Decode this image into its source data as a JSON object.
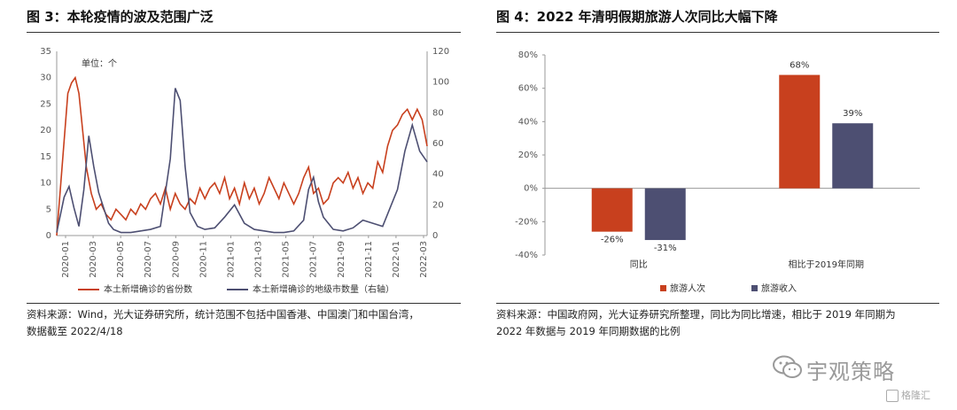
{
  "left": {
    "title": "图 3：本轮疫情的波及范围广泛",
    "source": "资料来源：Wind，光大证券研究所，统计范围不包括中国香港、中国澳门和中国台湾，",
    "source2": "数据截至 2022/4/18"
  },
  "right": {
    "title": "图 4：2022 年清明假期旅游人次同比大幅下降",
    "source": "资料来源：中国政府网，光大证券研究所整理，同比为同比增速，相比于 2019 年同期为",
    "source2": "2022 年数据与 2019 年同期数据的比例"
  },
  "watermark": {
    "text": "宇观策略",
    "small": "格隆汇"
  },
  "colors": {
    "orange": "#c8401e",
    "purple": "#4d4f72"
  },
  "chart_data": [
    {
      "type": "line",
      "unit_note": "单位：个",
      "x_tick_labels": [
        "2020-01",
        "2020-03",
        "2020-05",
        "2020-07",
        "2020-09",
        "2020-11",
        "2021-01",
        "2021-03",
        "2021-05",
        "2021-07",
        "2021-09",
        "2021-11",
        "2022-01",
        "2022-03"
      ],
      "y_left_ticks": [
        "0",
        "5",
        "10",
        "15",
        "20",
        "25",
        "30",
        "35"
      ],
      "y_right_ticks": [
        "0",
        "20",
        "40",
        "60",
        "80",
        "100",
        "120"
      ],
      "ylim_left": [
        0,
        35
      ],
      "ylim_right": [
        0,
        120
      ],
      "series": [
        {
          "name": "本土新增确诊的省份数",
          "axis": "left",
          "color": "#c8401e",
          "points": [
            [
              0,
              0
            ],
            [
              0.3,
              18
            ],
            [
              0.45,
              27
            ],
            [
              0.6,
              29
            ],
            [
              0.75,
              30
            ],
            [
              0.9,
              27
            ],
            [
              1.05,
              20
            ],
            [
              1.2,
              13
            ],
            [
              1.4,
              8
            ],
            [
              1.6,
              5
            ],
            [
              1.8,
              6
            ],
            [
              2.0,
              4
            ],
            [
              2.2,
              3
            ],
            [
              2.4,
              5
            ],
            [
              2.6,
              4
            ],
            [
              2.8,
              3
            ],
            [
              3.0,
              5
            ],
            [
              3.2,
              4
            ],
            [
              3.4,
              6
            ],
            [
              3.6,
              5
            ],
            [
              3.8,
              7
            ],
            [
              4.0,
              8
            ],
            [
              4.2,
              6
            ],
            [
              4.4,
              9
            ],
            [
              4.6,
              5
            ],
            [
              4.8,
              8
            ],
            [
              5.0,
              6
            ],
            [
              5.2,
              5
            ],
            [
              5.4,
              7
            ],
            [
              5.6,
              6
            ],
            [
              5.8,
              9
            ],
            [
              6.0,
              7
            ],
            [
              6.2,
              9
            ],
            [
              6.4,
              10
            ],
            [
              6.6,
              8
            ],
            [
              6.8,
              11
            ],
            [
              7.0,
              7
            ],
            [
              7.2,
              9
            ],
            [
              7.4,
              6
            ],
            [
              7.6,
              10
            ],
            [
              7.8,
              7
            ],
            [
              8.0,
              9
            ],
            [
              8.2,
              6
            ],
            [
              8.4,
              8
            ],
            [
              8.6,
              11
            ],
            [
              8.8,
              9
            ],
            [
              9.0,
              7
            ],
            [
              9.2,
              10
            ],
            [
              9.4,
              8
            ],
            [
              9.6,
              6
            ],
            [
              9.8,
              8
            ],
            [
              10.0,
              11
            ],
            [
              10.2,
              13
            ],
            [
              10.4,
              8
            ],
            [
              10.6,
              9
            ],
            [
              10.8,
              6
            ],
            [
              11.0,
              7
            ],
            [
              11.2,
              10
            ],
            [
              11.4,
              11
            ],
            [
              11.6,
              10
            ],
            [
              11.8,
              12
            ],
            [
              12.0,
              9
            ],
            [
              12.2,
              11
            ],
            [
              12.4,
              8
            ],
            [
              12.6,
              10
            ],
            [
              12.8,
              9
            ],
            [
              13.0,
              14
            ],
            [
              13.2,
              12
            ],
            [
              13.4,
              17
            ],
            [
              13.6,
              20
            ],
            [
              13.8,
              21
            ],
            [
              14.0,
              23
            ],
            [
              14.2,
              24
            ],
            [
              14.4,
              22
            ],
            [
              14.6,
              24
            ],
            [
              14.8,
              22
            ],
            [
              15.0,
              17
            ]
          ]
        },
        {
          "name": "本土新增确诊的地级市数量（右轴）",
          "axis": "right",
          "color": "#4d4f72",
          "points": [
            [
              0,
              2
            ],
            [
              0.3,
              25
            ],
            [
              0.5,
              32
            ],
            [
              0.7,
              18
            ],
            [
              0.9,
              6
            ],
            [
              1.1,
              30
            ],
            [
              1.3,
              65
            ],
            [
              1.5,
              45
            ],
            [
              1.7,
              28
            ],
            [
              1.9,
              18
            ],
            [
              2.1,
              8
            ],
            [
              2.3,
              4
            ],
            [
              2.6,
              2
            ],
            [
              3.0,
              2
            ],
            [
              3.4,
              3
            ],
            [
              3.8,
              4
            ],
            [
              4.2,
              6
            ],
            [
              4.6,
              50
            ],
            [
              4.8,
              96
            ],
            [
              5.0,
              88
            ],
            [
              5.2,
              45
            ],
            [
              5.4,
              15
            ],
            [
              5.7,
              6
            ],
            [
              6.0,
              4
            ],
            [
              6.4,
              5
            ],
            [
              6.8,
              12
            ],
            [
              7.2,
              20
            ],
            [
              7.6,
              8
            ],
            [
              8.0,
              4
            ],
            [
              8.4,
              3
            ],
            [
              8.8,
              2
            ],
            [
              9.2,
              2
            ],
            [
              9.6,
              3
            ],
            [
              10.0,
              10
            ],
            [
              10.2,
              30
            ],
            [
              10.4,
              38
            ],
            [
              10.6,
              22
            ],
            [
              10.8,
              12
            ],
            [
              11.2,
              4
            ],
            [
              11.6,
              3
            ],
            [
              12.0,
              5
            ],
            [
              12.4,
              10
            ],
            [
              12.8,
              8
            ],
            [
              13.2,
              6
            ],
            [
              13.5,
              18
            ],
            [
              13.8,
              30
            ],
            [
              14.1,
              55
            ],
            [
              14.4,
              72
            ],
            [
              14.7,
              55
            ],
            [
              15.0,
              48
            ]
          ]
        }
      ]
    },
    {
      "type": "bar",
      "categories": [
        "同比",
        "相比于2019年同期"
      ],
      "y_ticks": [
        "-40%",
        "-20%",
        "0%",
        "20%",
        "40%",
        "60%",
        "80%"
      ],
      "ylim": [
        -40,
        80
      ],
      "series": [
        {
          "name": "旅游人次",
          "color": "#c8401e",
          "values": [
            -26,
            68
          ],
          "labels": [
            "-26%",
            "68%"
          ]
        },
        {
          "name": "旅游收入",
          "color": "#4d4f72",
          "values": [
            -31,
            39
          ],
          "labels": [
            "-31%",
            "39%"
          ]
        }
      ]
    }
  ]
}
